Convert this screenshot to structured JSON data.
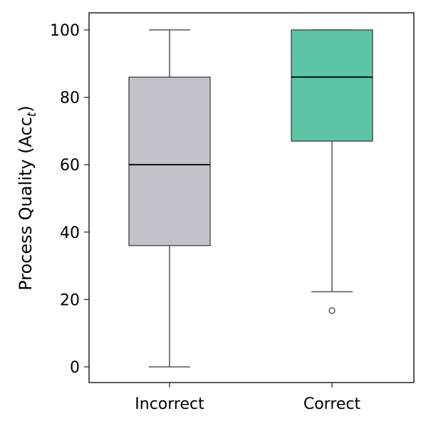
{
  "chart_data": {
    "type": "box",
    "title": "",
    "xlabel": "",
    "ylabel": "Process Quality (Acc",
    "ylabel_subscript": "t",
    "ylabel_suffix": ")",
    "ylim": [
      -4.5,
      105
    ],
    "yticks": [
      0,
      20,
      40,
      60,
      80,
      100
    ],
    "grid": false,
    "legend": "none",
    "categories": [
      "Incorrect",
      "Correct"
    ],
    "boxes": [
      {
        "category": "Incorrect",
        "whisker_low": 0,
        "q1": 36,
        "median": 60,
        "q3": 86,
        "whisker_high": 100,
        "outliers": [],
        "color": "#bfc3c9"
      },
      {
        "category": "Correct",
        "whisker_low": 22.3,
        "q1": 67,
        "median": 86,
        "q3": 100,
        "whisker_high": 100,
        "outliers": [
          16.7
        ],
        "color": "#5cc5a3"
      }
    ],
    "colors": {
      "edge": "#333333",
      "whisker": "#555555",
      "median": "#000000",
      "outlier": "#555555"
    }
  }
}
